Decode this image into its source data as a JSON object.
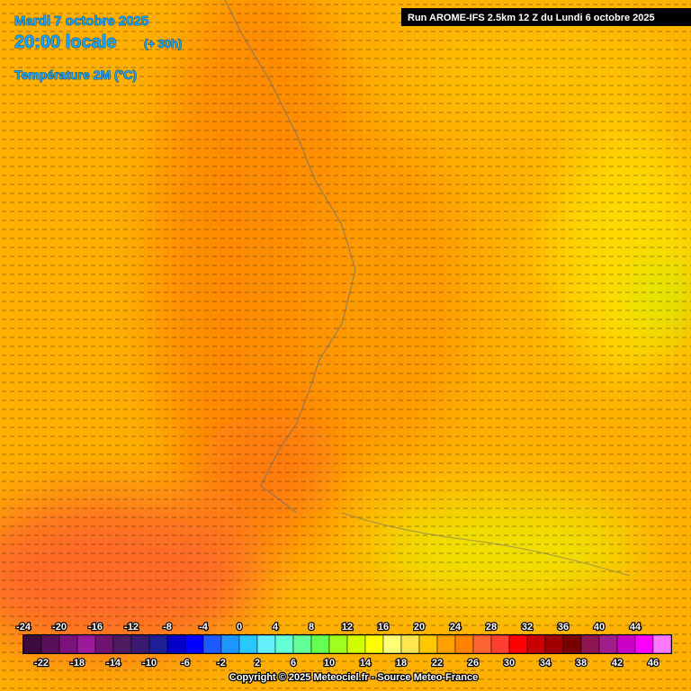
{
  "header": {
    "date": "Mardi 7 octobre 2025",
    "time": "20:00 locale",
    "lead": "(+ 30h)",
    "parameter": "Température 2M (°C)",
    "run": "Run AROME-IFS 2.5km 12 Z du Lundi 6 octobre 2025"
  },
  "scale": {
    "labels_top": [
      -24,
      -20,
      -16,
      -12,
      -8,
      -4,
      0,
      4,
      8,
      12,
      16,
      20,
      24,
      28,
      32,
      36,
      40,
      44
    ],
    "labels_bottom": [
      -22,
      -18,
      -14,
      -10,
      -6,
      -2,
      2,
      6,
      10,
      14,
      18,
      22,
      26,
      30,
      34,
      38,
      42,
      46
    ],
    "colors": [
      "#3c0a3c",
      "#5a0f5a",
      "#7a127a",
      "#9a1a9a",
      "#6e1470",
      "#501a60",
      "#3a1a6e",
      "#1e1e96",
      "#0000c8",
      "#0000ff",
      "#1e5aff",
      "#1e96ff",
      "#28c8ff",
      "#64f0ff",
      "#64ffd2",
      "#64ff96",
      "#64ff50",
      "#a0ff1e",
      "#d2ff00",
      "#ffff00",
      "#ffff78",
      "#ffe650",
      "#ffc800",
      "#ffa000",
      "#ff8200",
      "#ff6432",
      "#ff4030",
      "#ff0000",
      "#c80000",
      "#a00000",
      "#780000",
      "#8c1450",
      "#a01e8c",
      "#c800c8",
      "#ff00ff",
      "#ff78ff"
    ]
  },
  "footer": {
    "copyright": "Copyright © 2025 Meteociel.fr - Source Meteo-France"
  }
}
